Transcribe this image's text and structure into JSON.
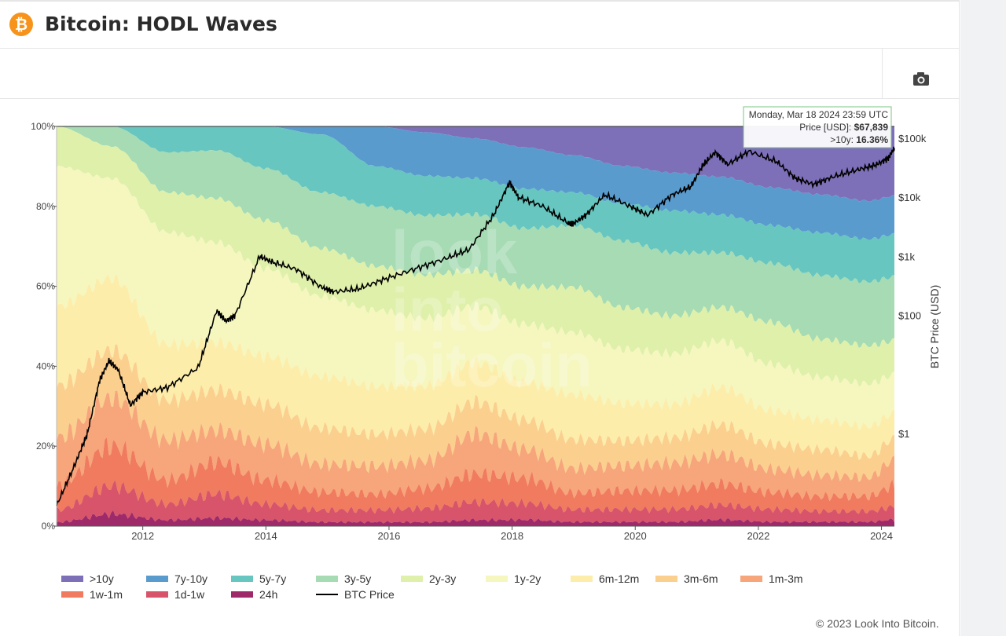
{
  "header": {
    "title": "Bitcoin: HODL Waves",
    "logo_glyph": "₿",
    "logo_color": "#f7931a"
  },
  "toolbar": {
    "camera_icon": "camera-icon"
  },
  "tooltip": {
    "date": "Monday, Mar 18 2024 23:59 UTC",
    "price_label": "Price [USD]:",
    "price_value": "$67,839",
    "band_label": ">10y:",
    "band_value": "16.36%"
  },
  "watermark": [
    "look",
    "into",
    "bitcoin"
  ],
  "footer": "© 2023 Look Into Bitcoin.",
  "chart_data": {
    "type": "area",
    "stacked": true,
    "ylabel_right": "BTC Price (USD)",
    "y_ticks_left": [
      "0%",
      "20%",
      "40%",
      "60%",
      "80%",
      "100%"
    ],
    "y_ticks_right": [
      "$1",
      "$100",
      "$1k",
      "$10k",
      "$100k"
    ],
    "x_ticks": [
      "2012",
      "2014",
      "2016",
      "2018",
      "2020",
      "2022",
      "2024"
    ],
    "x": [
      2010.6,
      2011.5,
      2012.4,
      2013.2,
      2014.0,
      2014.9,
      2015.8,
      2016.6,
      2017.4,
      2018.2,
      2019.0,
      2019.8,
      2020.6,
      2021.4,
      2022.2,
      2023.0,
      2023.8,
      2024.21
    ],
    "series": [
      {
        "name": "24h",
        "color": "#9e2a6a",
        "values": [
          1,
          3,
          1.5,
          2,
          1.5,
          1,
          1,
          1,
          1.5,
          1.5,
          1,
          1,
          1,
          1.5,
          1,
          1,
          1,
          1.5
        ]
      },
      {
        "name": "1d-1w",
        "color": "#d7546a",
        "values": [
          3,
          7,
          4,
          6,
          4,
          3,
          3,
          3.5,
          4.5,
          4,
          3,
          3,
          3,
          3.5,
          3,
          2.5,
          2.5,
          3
        ]
      },
      {
        "name": "1w-1m",
        "color": "#f07b5e",
        "values": [
          6,
          10,
          6,
          8,
          6,
          4.5,
          4,
          5,
          7,
          6,
          4,
          4.5,
          4.5,
          5,
          4,
          3.5,
          3.5,
          5
        ]
      },
      {
        "name": "1m-3m",
        "color": "#f7a57a",
        "values": [
          12,
          12,
          10,
          8,
          9,
          7,
          7,
          7,
          10,
          7,
          6,
          6,
          6.5,
          7,
          5.5,
          5,
          4.5,
          6
        ]
      },
      {
        "name": "3m-6m",
        "color": "#fbcf8e",
        "values": [
          13,
          12,
          10,
          10,
          10,
          9,
          8,
          8,
          8,
          7,
          7,
          6,
          6,
          7,
          6,
          6,
          5,
          5
        ]
      },
      {
        "name": "6m-12m",
        "color": "#fdedaa",
        "values": [
          20,
          18,
          14,
          12,
          12,
          13,
          12,
          11,
          10,
          9,
          11,
          9,
          8,
          9,
          8,
          7,
          7,
          6
        ]
      },
      {
        "name": "1y-2y",
        "color": "#f5f7bf",
        "values": [
          35,
          25,
          28,
          25,
          22,
          20,
          19,
          17,
          14,
          14,
          15,
          13,
          12,
          11,
          11,
          10,
          10,
          9
        ]
      },
      {
        "name": "2y-3y",
        "color": "#dff0aa",
        "values": [
          10,
          8,
          10,
          11,
          12,
          12,
          11,
          11,
          9,
          9,
          11,
          10,
          9,
          8,
          10,
          9,
          9,
          8
        ]
      },
      {
        "name": "3y-5y",
        "color": "#a6dbb4",
        "values": [
          0,
          5,
          10,
          12,
          13,
          14,
          15,
          15,
          14,
          14,
          15,
          16,
          15,
          13,
          14,
          15,
          15,
          15
        ]
      },
      {
        "name": "5y-7y",
        "color": "#67c6bf",
        "values": [
          0,
          0,
          6.5,
          6,
          10.5,
          14.5,
          10,
          10,
          9,
          9.5,
          8,
          9,
          10,
          9,
          9,
          10,
          10,
          10
        ]
      },
      {
        "name": "7y-10y",
        "color": "#5a9bce",
        "values": [
          0,
          0,
          0,
          0,
          0,
          2,
          10,
          11,
          10,
          10,
          9,
          9,
          9,
          9,
          9,
          9,
          9,
          9
        ]
      },
      {
        "name": ">10y",
        "color": "#7e70b8",
        "values": [
          0,
          0,
          0,
          0,
          0,
          0,
          0,
          1.5,
          3,
          5,
          7,
          9.5,
          11,
          12,
          14.5,
          16,
          17.5,
          16.36
        ]
      }
    ],
    "price": {
      "name": "BTC Price",
      "color": "#000000",
      "x": [
        2010.6,
        2010.9,
        2011.1,
        2011.3,
        2011.45,
        2011.6,
        2011.8,
        2012.0,
        2012.4,
        2012.9,
        2013.2,
        2013.35,
        2013.5,
        2013.9,
        2014.1,
        2014.5,
        2014.9,
        2015.1,
        2015.5,
        2015.9,
        2016.4,
        2016.9,
        2017.3,
        2017.7,
        2017.96,
        2018.1,
        2018.5,
        2018.9,
        2019.0,
        2019.2,
        2019.5,
        2019.9,
        2020.2,
        2020.6,
        2020.9,
        2021.1,
        2021.3,
        2021.5,
        2021.85,
        2022.3,
        2022.6,
        2022.9,
        2023.2,
        2023.6,
        2023.9,
        2024.1,
        2024.21
      ],
      "y": [
        0.06,
        0.3,
        1,
        8,
        17,
        12,
        3,
        5,
        6,
        13,
        120,
        80,
        100,
        1000,
        800,
        600,
        300,
        250,
        280,
        400,
        600,
        900,
        1300,
        5000,
        18000,
        10000,
        7000,
        3700,
        3600,
        5000,
        11000,
        7200,
        5000,
        11000,
        15000,
        35000,
        58000,
        36000,
        60000,
        40000,
        21000,
        16500,
        22000,
        29000,
        35000,
        45000,
        67839
      ]
    }
  }
}
